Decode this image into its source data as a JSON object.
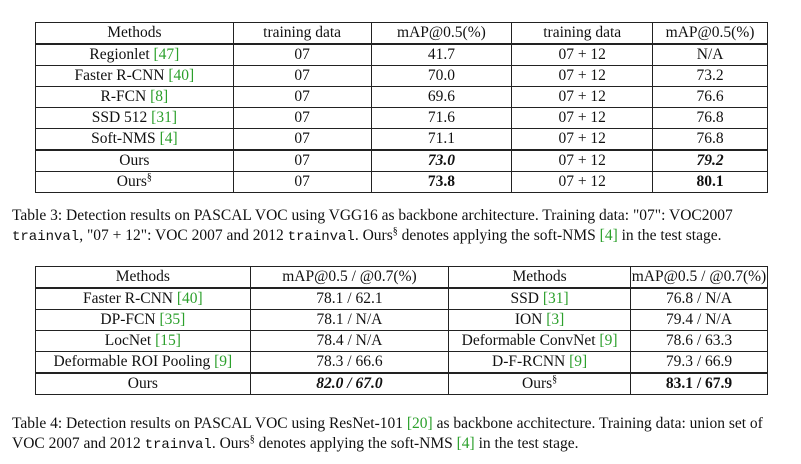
{
  "table3": {
    "headers": [
      "Methods",
      "training data",
      "mAP@0.5(%)",
      "training data",
      "mAP@0.5(%)"
    ],
    "rows": [
      {
        "method": "Regionlet",
        "cite": "[47]",
        "td1": "07",
        "m1": "41.7",
        "td2": "07 + 12",
        "m2": "N/A"
      },
      {
        "method": "Faster R-CNN",
        "cite": "[40]",
        "td1": "07",
        "m1": "70.0",
        "td2": "07 + 12",
        "m2": "73.2"
      },
      {
        "method": "R-FCN",
        "cite": "[8]",
        "td1": "07",
        "m1": "69.6",
        "td2": "07 + 12",
        "m2": "76.6"
      },
      {
        "method": "SSD 512",
        "cite": "[31]",
        "td1": "07",
        "m1": "71.6",
        "td2": "07 + 12",
        "m2": "76.8"
      },
      {
        "method": "Soft-NMS",
        "cite": "[4]",
        "td1": "07",
        "m1": "71.1",
        "td2": "07 + 12",
        "m2": "76.8"
      },
      {
        "method": "Ours",
        "td1": "07",
        "m1": "73.0",
        "td2": "07 + 12",
        "m2": "79.2"
      },
      {
        "method": "Ours",
        "sup": "§",
        "td1": "07",
        "m1": "73.8",
        "td2": "07 + 12",
        "m2": "80.1"
      }
    ],
    "caption": {
      "p1": "Table 3: Detection results on PASCAL VOC using VGG16 as backbone architecture. Training data: \"07\": VOC2007 ",
      "mono1": "trainval",
      "p2": ", \"07 + 12\": VOC 2007 and 2012 ",
      "mono2": "trainval",
      "p3": ". Ours",
      "sup": "§",
      "p4": " denotes applying the soft-NMS ",
      "cite": "[4]",
      "p5": " in the test stage."
    }
  },
  "table4": {
    "headers": [
      "Methods",
      "mAP@0.5 / @0.7(%)",
      "Methods",
      "mAP@0.5 / @0.7(%)"
    ],
    "rows": [
      {
        "m1": "Faster R-CNN",
        "c1": "[40]",
        "v1": "78.1 / 62.1",
        "m2": "SSD",
        "c2": "[31]",
        "v2": "76.8 / N/A"
      },
      {
        "m1": "DP-FCN",
        "c1": "[35]",
        "v1": "78.1 / N/A",
        "m2": "ION",
        "c2": "[3]",
        "v2": "79.4 / N/A"
      },
      {
        "m1": "LocNet",
        "c1": "[15]",
        "v1": "78.4 / N/A",
        "m2": "Deformable ConvNet",
        "c2": "[9]",
        "v2": "78.6 / 63.3"
      },
      {
        "m1": "Deformable ROI Pooling",
        "c1": "[9]",
        "v1": "78.3 / 66.6",
        "m2": "D-F-RCNN",
        "c2": "[9]",
        "v2": "79.3 / 66.9"
      },
      {
        "m1": "Ours",
        "v1": "82.0 / 67.0",
        "m2": "Ours",
        "sup2": "§",
        "v2": "83.1 / 67.9"
      }
    ],
    "caption": {
      "p1": "Table 4: Detection results on PASCAL VOC using ResNet-101 ",
      "cite1": "[20]",
      "p2": " as backbone acchitecture. Training data: union set of VOC 2007 and 2012 ",
      "mono": "trainval",
      "p3": ". Ours",
      "sup": "§",
      "p4": " denotes applying the soft-NMS ",
      "cite2": "[4]",
      "p5": " in the test stage."
    }
  }
}
